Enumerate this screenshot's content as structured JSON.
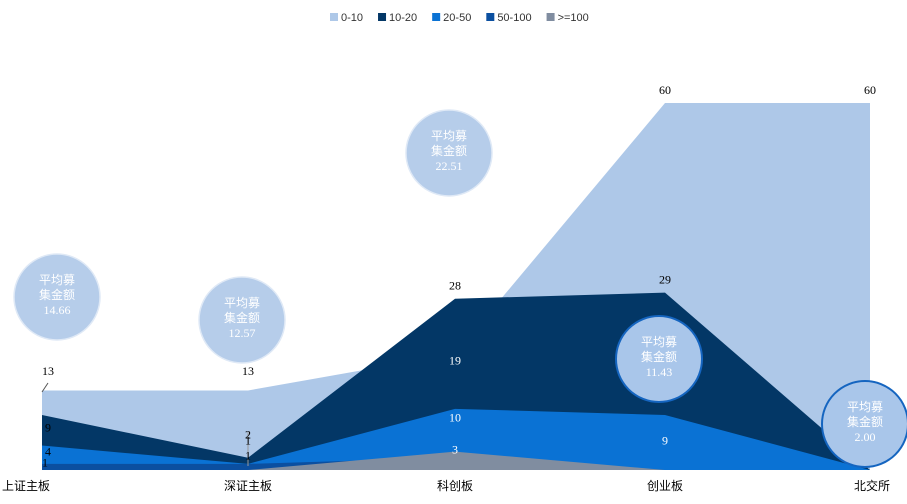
{
  "chart_data": {
    "type": "area",
    "categories": [
      "上证主板",
      "深证主板",
      "科创板",
      "创业板",
      "北交所"
    ],
    "ylim": [
      0,
      60
    ],
    "legend": "top",
    "series": [
      {
        "name": "0-10",
        "color": "#aec8e8",
        "values": [
          13,
          13,
          19,
          60,
          60
        ],
        "value_labels": [
          "13",
          "13",
          "19",
          "60",
          "60"
        ]
      },
      {
        "name": "10-20",
        "color": "#033766",
        "values": [
          9,
          2,
          28,
          29,
          0
        ],
        "value_labels": [
          "9",
          "2",
          "28",
          "29",
          null
        ]
      },
      {
        "name": "20-50",
        "color": "#0a72d4",
        "values": [
          4,
          1,
          10,
          9,
          0
        ],
        "value_labels": [
          "4",
          "1",
          "10",
          "9",
          null
        ]
      },
      {
        "name": "50-100",
        "color": "#0b4fa0",
        "values": [
          1,
          1,
          2,
          0,
          0
        ],
        "value_labels": [
          "1",
          "1",
          null,
          null,
          null
        ]
      },
      {
        "name": ">=100",
        "color": "#808da0",
        "values": [
          0,
          0,
          3,
          0,
          0
        ],
        "value_labels": [
          null,
          null,
          "3",
          null,
          null
        ]
      }
    ],
    "bubbles": {
      "label_lines": [
        "平均募",
        "集金额"
      ],
      "values": [
        14.66,
        12.57,
        22.51,
        11.43,
        2
      ],
      "value_labels": [
        "14.66",
        "12.57",
        "22.51",
        "11.43",
        "2.00"
      ]
    }
  }
}
